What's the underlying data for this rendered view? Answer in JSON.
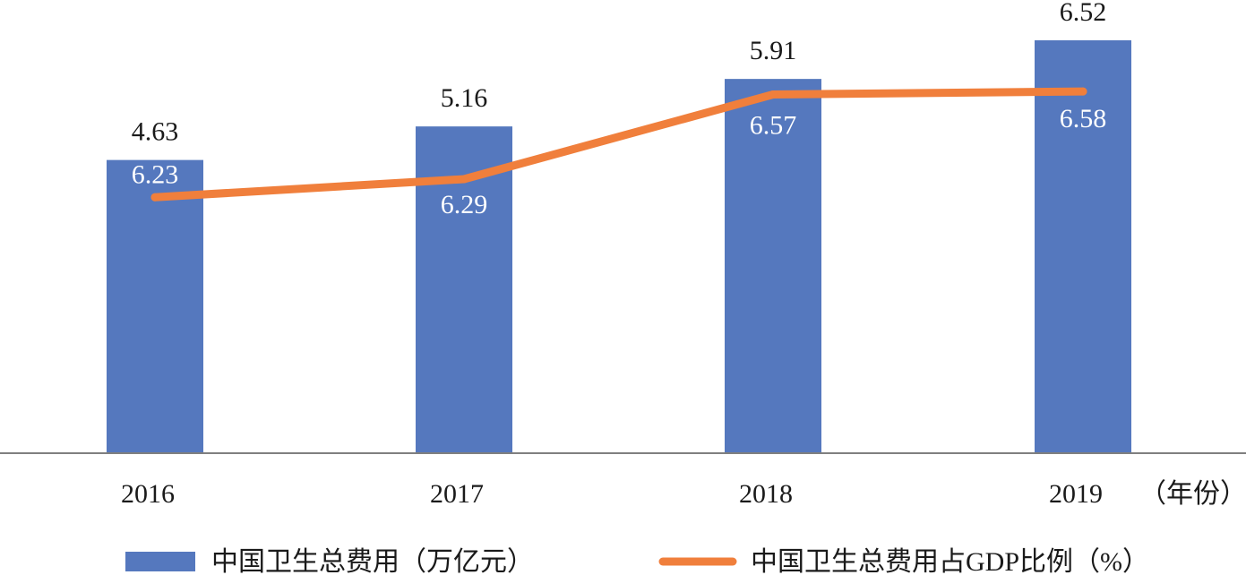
{
  "chart_data": {
    "type": "bar",
    "categories": [
      "2016",
      "2017",
      "2018",
      "2019"
    ],
    "x_unit": "（年份）",
    "series": [
      {
        "name": "中国卫生总费用（万亿元）",
        "type": "bar",
        "values": [
          4.63,
          5.16,
          5.91,
          6.52
        ],
        "labels": [
          "4.63",
          "5.16",
          "5.91",
          "6.52"
        ],
        "color": "#5578BE",
        "ylim": [
          0,
          6.52
        ]
      },
      {
        "name": "中国卫生总费用占GDP比例（%）",
        "type": "line",
        "values": [
          6.23,
          6.29,
          6.57,
          6.58
        ],
        "labels": [
          "6.23",
          "6.29",
          "6.57",
          "6.58"
        ],
        "color": "#F07F3C",
        "ylim": [
          5.81,
          6.61
        ]
      }
    ],
    "legend_position": "bottom",
    "grid": false
  }
}
